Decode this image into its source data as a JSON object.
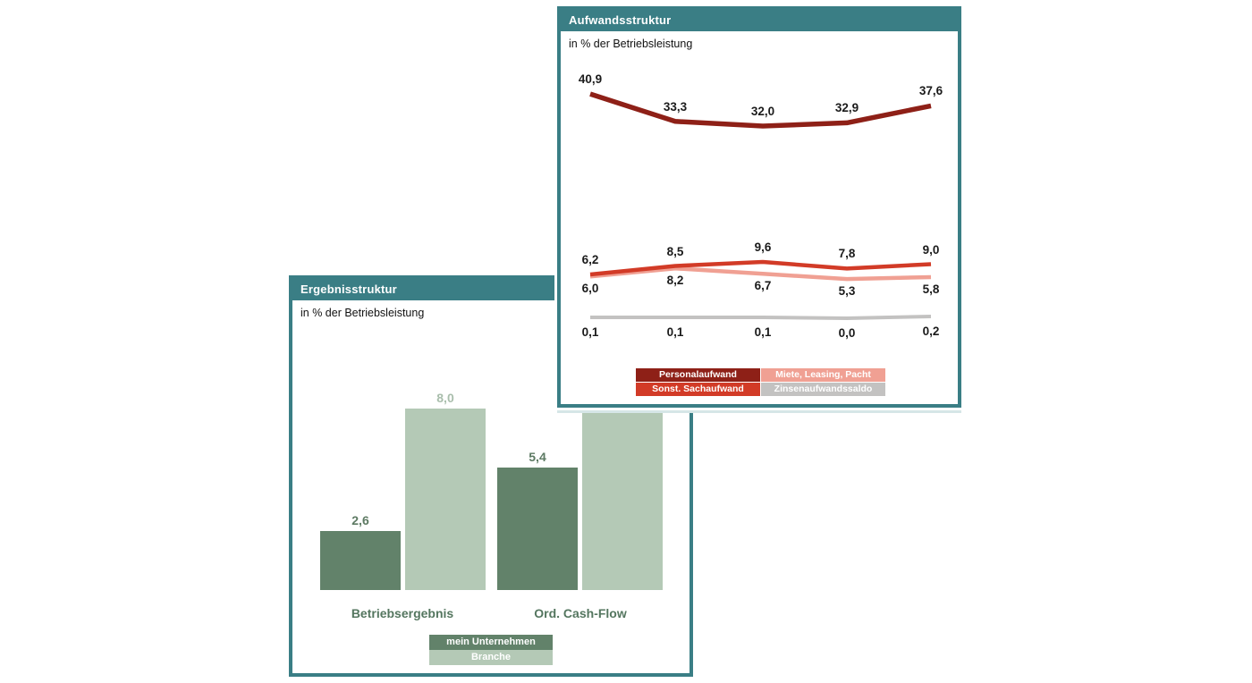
{
  "colors": {
    "teal": "#3A7E85",
    "panel_bg": "#FFFFFF",
    "personalaufwand": "#8E2017",
    "sonst_sachaufwand": "#D23B27",
    "miete_leasing_pacht": "#F0A093",
    "zinsenaufwandssaldo": "#C3C2C1",
    "mein_unternehmen": "#62826A",
    "branche": "#B4C9B6",
    "value_label": "#1B1B1B",
    "bar_label_dark": "#5D7A63",
    "bar_label_light": "#A9BEAC",
    "category_label": "#54765F"
  },
  "chart_data": [
    {
      "id": "aufwandsstruktur",
      "type": "line",
      "title": "Aufwandsstruktur",
      "subtitle": "in % der Betriebsleistung",
      "points": 5,
      "axes_visible": false,
      "x_tick_labels": [],
      "number_format": "german decimal comma, one decimal, label at every point",
      "series": [
        {
          "name": "Personalaufwand",
          "color": "#8E2017",
          "values": [
            40.9,
            33.3,
            32.0,
            32.9,
            37.6
          ]
        },
        {
          "name": "Sonst. Sachaufwand",
          "color": "#D23B27",
          "values": [
            6.2,
            8.5,
            9.6,
            7.8,
            9.0
          ]
        },
        {
          "name": "Miete, Leasing, Pacht",
          "color": "#F0A093",
          "values": [
            6.0,
            8.2,
            6.7,
            5.3,
            5.8
          ]
        },
        {
          "name": "Zinsenaufwandssaldo",
          "color": "#C3C2C1",
          "values": [
            0.1,
            0.1,
            0.1,
            0.0,
            0.2
          ]
        }
      ],
      "legend": {
        "position": "bottom",
        "layout": "2x2 grid",
        "items": [
          "Personalaufwand",
          "Miete, Leasing, Pacht",
          "Sonst. Sachaufwand",
          "Zinsenaufwandssaldo"
        ]
      }
    },
    {
      "id": "ergebnisstruktur",
      "type": "bar",
      "title": "Ergebnisstruktur",
      "subtitle": "in % der Betriebsleistung",
      "categories": [
        "Betriebsergebnis",
        "Ord. Cash-Flow"
      ],
      "series": [
        {
          "name": "mein Unternehmen",
          "color": "#62826A",
          "values": [
            2.6,
            5.4
          ]
        },
        {
          "name": "Branche",
          "color": "#B4C9B6",
          "values": [
            8.0,
            null
          ],
          "note": "second bar rises behind the overlapping Aufwandsstruktur panel; its top and value label are not visible"
        }
      ],
      "legend": {
        "position": "bottom",
        "layout": "stacked rows",
        "items": [
          "mein Unternehmen",
          "Branche"
        ]
      }
    }
  ]
}
